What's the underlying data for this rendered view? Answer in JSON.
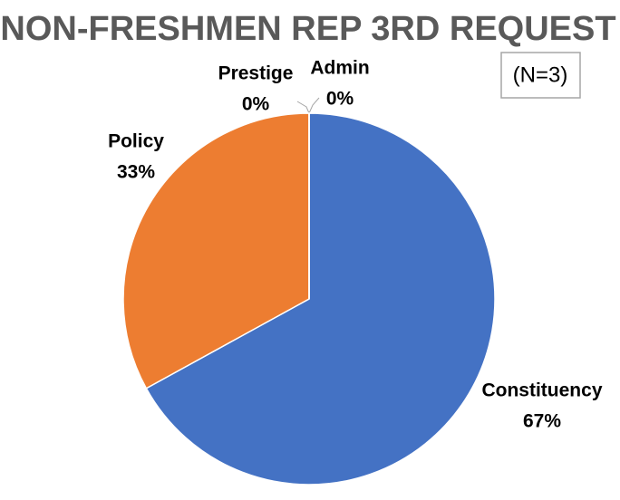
{
  "chart_data": {
    "type": "pie",
    "title": "NON-FRESHMEN REP 3RD REQUEST",
    "annotation": "(N=3)",
    "categories": [
      "Constituency",
      "Policy",
      "Prestige",
      "Admin"
    ],
    "values": [
      67,
      33,
      0,
      0
    ],
    "value_labels": [
      "67%",
      "33%",
      "0%",
      "0%"
    ],
    "colors": [
      "#4472c4",
      "#ed7d31",
      "#a5a5a5",
      "#ffc000"
    ]
  }
}
